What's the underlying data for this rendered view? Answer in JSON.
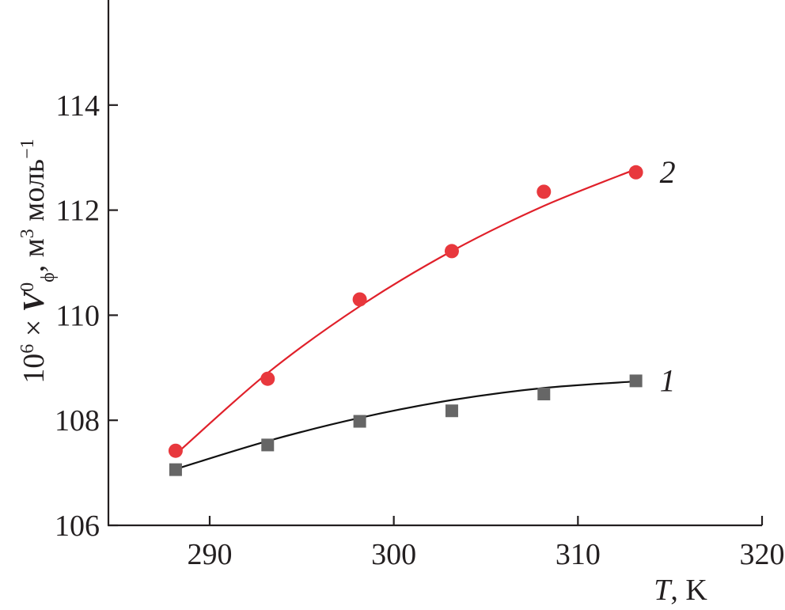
{
  "chart_data": {
    "type": "scatter",
    "xlabel": {
      "var": "T",
      "unit": ", K"
    },
    "ylabel": {
      "prefix": "10",
      "prefix_sup": "6",
      "times": " × ",
      "var": "V",
      "var_sup": "0",
      "var_sub": "ϕ",
      "unit": ", м",
      "unit_sup": "3",
      "unit_rest": " моль",
      "unit_rest_sup": "−1"
    },
    "xlim": [
      284.5,
      320
    ],
    "ylim": [
      106,
      116
    ],
    "x_ticks": [
      290,
      300,
      310,
      320
    ],
    "y_ticks": [
      106,
      108,
      110,
      112,
      114
    ],
    "x_tick_labels": [
      "290",
      "300",
      "310",
      "320"
    ],
    "y_tick_labels": [
      "106",
      "108",
      "110",
      "112",
      "114"
    ],
    "grid": false,
    "series": [
      {
        "name": "1",
        "marker": "square",
        "color": "#666666",
        "line_color": "#111111",
        "x": [
          288.15,
          293.15,
          298.15,
          303.15,
          308.15,
          313.15
        ],
        "y": [
          107.06,
          107.53,
          107.98,
          108.18,
          108.5,
          108.75
        ],
        "fit": [
          107.07,
          107.605,
          108.045,
          108.385,
          108.615,
          108.74
        ]
      },
      {
        "name": "2",
        "marker": "circle",
        "color": "#e8383d",
        "line_color": "#e0202a",
        "x": [
          288.15,
          293.15,
          298.15,
          303.15,
          308.15,
          313.15
        ],
        "y": [
          107.42,
          108.79,
          110.3,
          111.22,
          112.35,
          112.72
        ],
        "fit": [
          107.35,
          108.9,
          110.17,
          111.22,
          112.08,
          112.78
        ]
      }
    ]
  }
}
